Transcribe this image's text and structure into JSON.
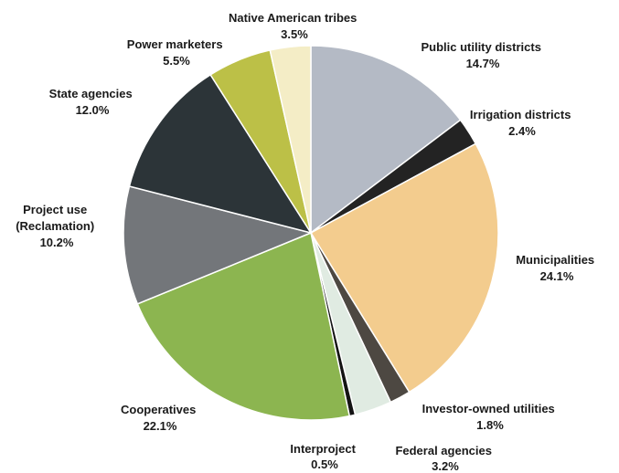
{
  "chart_data": {
    "type": "pie",
    "start_angle_deg": 0,
    "direction": "clockwise",
    "slices": [
      {
        "name": "Public utility districts",
        "value": 14.7,
        "label": "14.7%",
        "color": "#b4bac5"
      },
      {
        "name": "Irrigation districts",
        "value": 2.4,
        "label": "2.4%",
        "color": "#232323"
      },
      {
        "name": "Municipalities",
        "value": 24.1,
        "label": "24.1%",
        "color": "#f3cc8e"
      },
      {
        "name": "Investor-owned utilities",
        "value": 1.8,
        "label": "1.8%",
        "color": "#4d4842"
      },
      {
        "name": "Federal agencies",
        "value": 3.2,
        "label": "3.2%",
        "color": "#e0ebe2"
      },
      {
        "name": "Interproject",
        "value": 0.5,
        "label": "0.5%",
        "color": "#141414"
      },
      {
        "name": "Cooperatives",
        "value": 22.1,
        "label": "22.1%",
        "color": "#8cb550"
      },
      {
        "name": "Project use (Reclamation)",
        "value": 10.2,
        "label": "10.2%",
        "color": "#73767a"
      },
      {
        "name": "State agencies",
        "value": 12.0,
        "label": "12.0%",
        "color": "#2c3438"
      },
      {
        "name": "Power marketers",
        "value": 5.5,
        "label": "5.5%",
        "color": "#bcc047"
      },
      {
        "name": "Native American tribes",
        "value": 3.5,
        "label": "3.5%",
        "color": "#f4edc6"
      }
    ]
  }
}
